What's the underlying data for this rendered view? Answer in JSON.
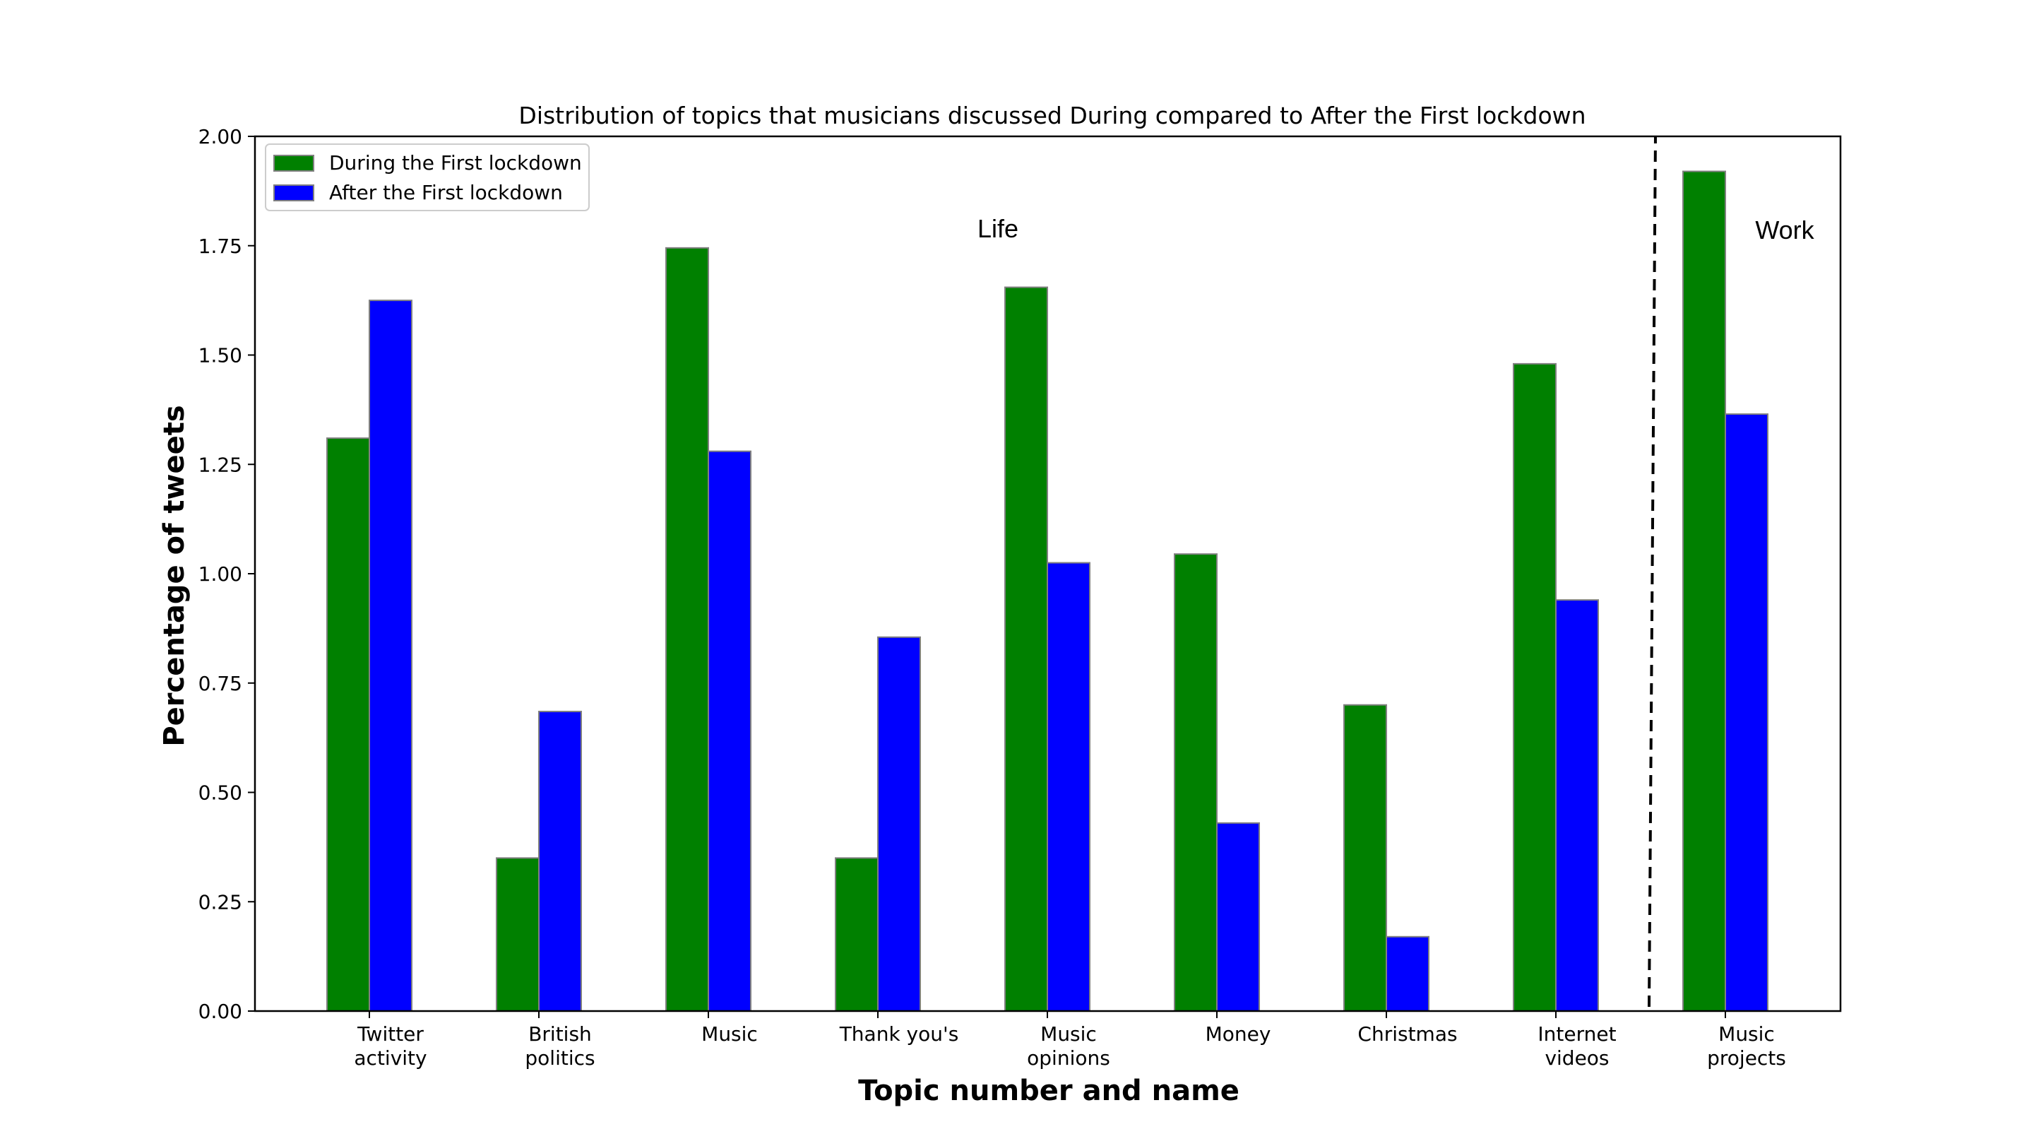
{
  "chart_data": {
    "type": "bar",
    "title": "Distribution of topics that musicians discussed During compared to After the First lockdown",
    "xlabel": "Topic number and name",
    "ylabel": "Percentage of tweets",
    "ylim": [
      0,
      2.0
    ],
    "yticks": [
      "0.00",
      "0.25",
      "0.50",
      "0.75",
      "1.00",
      "1.25",
      "1.50",
      "1.75",
      "2.00"
    ],
    "categories": [
      [
        "Twitter",
        "activity"
      ],
      [
        "British",
        "politics"
      ],
      [
        "Music"
      ],
      [
        "Thank you's"
      ],
      [
        "Music",
        "opinions"
      ],
      [
        "Money"
      ],
      [
        "Christmas"
      ],
      [
        "Internet",
        "videos"
      ],
      [
        "Music",
        "projects"
      ]
    ],
    "series": [
      {
        "name": "During the First lockdown",
        "color": "#008000",
        "values": [
          1.31,
          0.35,
          1.745,
          0.35,
          1.655,
          1.045,
          0.7,
          1.48,
          1.92
        ]
      },
      {
        "name": "After the First lockdown",
        "color": "#0000ff",
        "values": [
          1.625,
          0.685,
          1.28,
          0.855,
          1.025,
          0.43,
          0.17,
          0.94,
          1.365
        ]
      }
    ],
    "legend_position": "upper-left",
    "grid": false,
    "annotations": [
      {
        "text": "Life"
      },
      {
        "text": "Work"
      }
    ],
    "separator": {
      "style": "dashed",
      "between": [
        "Internet videos",
        "Music projects"
      ]
    }
  }
}
